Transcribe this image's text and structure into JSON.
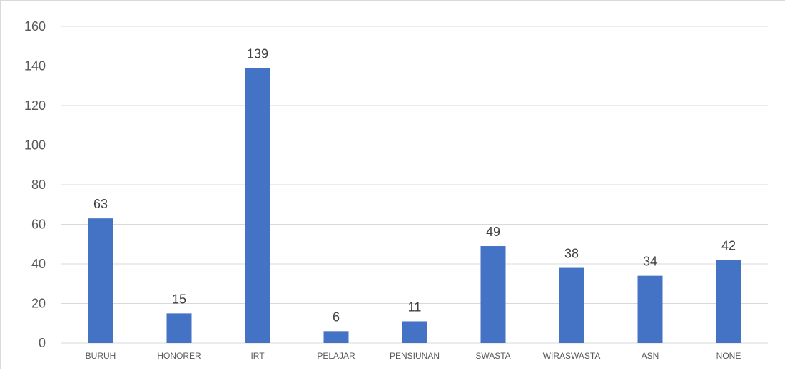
{
  "chart_data": {
    "type": "bar",
    "categories": [
      "BURUH",
      "HONORER",
      "IRT",
      "PELAJAR",
      "PENSIUNAN",
      "SWASTA",
      "WIRASWASTA",
      "ASN",
      "NONE"
    ],
    "values": [
      63,
      15,
      139,
      6,
      11,
      49,
      38,
      34,
      42
    ],
    "title": "",
    "xlabel": "",
    "ylabel": "",
    "ylim": [
      0,
      160
    ],
    "yticks": [
      0,
      20,
      40,
      60,
      80,
      100,
      120,
      140,
      160
    ],
    "grid": true,
    "legend": "none",
    "data_labels": true,
    "bar_color": "#4472C4"
  }
}
